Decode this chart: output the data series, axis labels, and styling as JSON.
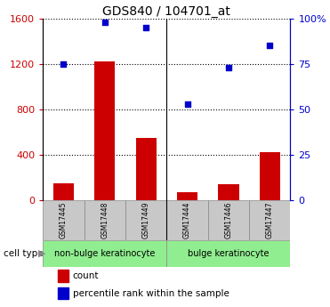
{
  "title": "GDS840 / 104701_at",
  "samples": [
    "GSM17445",
    "GSM17448",
    "GSM17449",
    "GSM17444",
    "GSM17446",
    "GSM17447"
  ],
  "counts": [
    150,
    1220,
    550,
    70,
    140,
    420
  ],
  "percentiles": [
    75,
    98,
    95,
    53,
    73,
    85
  ],
  "group_labels": [
    "non-bulge keratinocyte",
    "bulge keratinocyte"
  ],
  "bar_color": "#CC0000",
  "dot_color": "#0000CC",
  "left_ylim": [
    0,
    1600
  ],
  "left_yticks": [
    0,
    400,
    800,
    1200,
    1600
  ],
  "right_ylim": [
    0,
    100
  ],
  "right_yticks": [
    0,
    25,
    50,
    75,
    100
  ],
  "right_yticklabels": [
    "0",
    "25",
    "50",
    "75",
    "100%"
  ],
  "left_tick_color": "#CC0000",
  "right_tick_color": "#0000CC",
  "sample_box_color": "#C8C8C8",
  "group_color": "#90EE90",
  "legend_count_label": "count",
  "legend_percentile_label": "percentile rank within the sample"
}
